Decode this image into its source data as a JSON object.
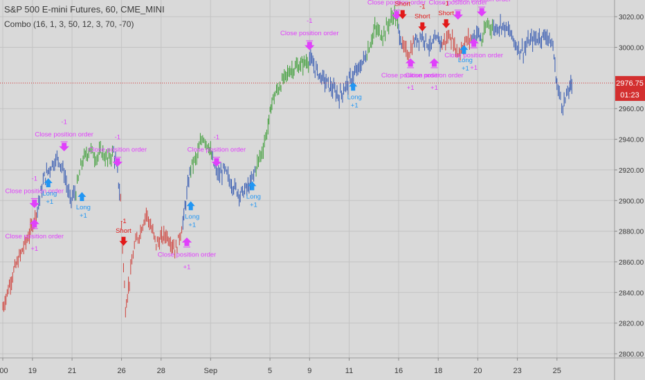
{
  "header": {
    "title": "S&P 500 E-mini Futures, 60, CME_MINI",
    "indicator": "Combo (16, 1, 3, 50, 12, 3, 70, -70)"
  },
  "colors": {
    "background": "#d9d9d9",
    "grid": "#c3c3c3",
    "up_trend": "#3a9c34",
    "down_trend": "#cf3e38",
    "neutral": "#2f55b0",
    "long_arrow": "#2196f3",
    "short_arrow": "#e21919",
    "close_arrow": "#e040fb",
    "price_label_bg": "#d32f2f"
  },
  "chart_data": {
    "type": "bar",
    "grid": true,
    "ylim": [
      2800,
      3030
    ],
    "y_ticks": [
      2800,
      2820,
      2840,
      2860,
      2880,
      2900,
      2920,
      2940,
      2960,
      3000,
      3020
    ],
    "y_tick_labels": [
      "2800.00",
      "2820.00",
      "2840.00",
      "2860.00",
      "2880.00",
      "2900.00",
      "2920.00",
      "2940.00",
      "2960.00",
      "3000.00",
      "3020.00"
    ],
    "x_ticks": [
      {
        "label": ":00",
        "x": 0
      },
      {
        "label": "19",
        "x": 3
      },
      {
        "label": "21",
        "x": 7
      },
      {
        "label": "26",
        "x": 12
      },
      {
        "label": "28",
        "x": 16
      },
      {
        "label": "Sep",
        "x": 21
      },
      {
        "label": "5",
        "x": 27
      },
      {
        "label": "9",
        "x": 31
      },
      {
        "label": "11",
        "x": 35
      },
      {
        "label": "16",
        "x": 40
      },
      {
        "label": "18",
        "x": 44
      },
      {
        "label": "20",
        "x": 48
      },
      {
        "label": "23",
        "x": 52
      },
      {
        "label": "25",
        "x": 56
      }
    ],
    "xlim": [
      0,
      60
    ],
    "last_price": "2976.75",
    "countdown": "01:23",
    "segments": [
      {
        "trend": "down",
        "points": [
          [
            0,
            2830
          ],
          [
            1,
            2852
          ],
          [
            2,
            2868
          ],
          [
            2.8,
            2880
          ],
          [
            3.5,
            2895
          ]
        ]
      },
      {
        "trend": "neutral",
        "points": [
          [
            3.5,
            2895
          ],
          [
            4.2,
            2915
          ],
          [
            5,
            2924
          ],
          [
            5.6,
            2928
          ],
          [
            6.2,
            2918
          ],
          [
            6.8,
            2900
          ],
          [
            7.4,
            2906
          ]
        ]
      },
      {
        "trend": "up",
        "points": [
          [
            7.4,
            2906
          ],
          [
            8,
            2925
          ],
          [
            8.8,
            2934
          ],
          [
            9.4,
            2928
          ],
          [
            10,
            2932
          ],
          [
            10.6,
            2926
          ],
          [
            11.2,
            2932
          ]
        ]
      },
      {
        "trend": "neutral",
        "points": [
          [
            11.2,
            2932
          ],
          [
            11.6,
            2918
          ],
          [
            11.9,
            2900
          ]
        ]
      },
      {
        "trend": "down",
        "points": [
          [
            11.9,
            2900
          ],
          [
            12.1,
            2870
          ],
          [
            12.4,
            2830
          ],
          [
            12.8,
            2848
          ],
          [
            13.3,
            2870
          ],
          [
            13.8,
            2878
          ],
          [
            14.5,
            2892
          ],
          [
            15.5,
            2872
          ],
          [
            16.5,
            2878
          ],
          [
            17.5,
            2868
          ],
          [
            18.2,
            2885
          ]
        ]
      },
      {
        "trend": "neutral",
        "points": [
          [
            18.2,
            2885
          ],
          [
            18.6,
            2904
          ],
          [
            19,
            2922
          ]
        ]
      },
      {
        "trend": "up",
        "points": [
          [
            19,
            2922
          ],
          [
            19.6,
            2928
          ],
          [
            20.2,
            2942
          ],
          [
            20.8,
            2936
          ],
          [
            21.2,
            2926
          ]
        ]
      },
      {
        "trend": "neutral",
        "points": [
          [
            21.2,
            2926
          ],
          [
            21.8,
            2916
          ],
          [
            22.4,
            2920
          ],
          [
            23,
            2912
          ],
          [
            24,
            2904
          ],
          [
            25,
            2910
          ],
          [
            25.6,
            2922
          ]
        ]
      },
      {
        "trend": "up",
        "points": [
          [
            25.6,
            2922
          ],
          [
            26.2,
            2932
          ],
          [
            26.8,
            2948
          ],
          [
            27.2,
            2965
          ],
          [
            28,
            2975
          ],
          [
            29,
            2985
          ],
          [
            30,
            2988
          ],
          [
            31,
            2992
          ]
        ]
      },
      {
        "trend": "neutral",
        "points": [
          [
            31,
            2992
          ],
          [
            32,
            2982
          ],
          [
            33,
            2975
          ],
          [
            34,
            2968
          ],
          [
            35,
            2978
          ],
          [
            36,
            2986
          ],
          [
            36.8,
            2996
          ]
        ]
      },
      {
        "trend": "up",
        "points": [
          [
            36.8,
            2996
          ],
          [
            37.6,
            3012
          ],
          [
            38.4,
            3008
          ],
          [
            39,
            3016
          ],
          [
            39.6,
            3022
          ],
          [
            40,
            3012
          ]
        ]
      },
      {
        "trend": "neutral",
        "points": [
          [
            40,
            3012
          ],
          [
            40.4,
            3000
          ]
        ]
      },
      {
        "trend": "down",
        "points": [
          [
            40.4,
            3000
          ],
          [
            41,
            2995
          ],
          [
            41.6,
            3004
          ]
        ]
      },
      {
        "trend": "neutral",
        "points": [
          [
            41.6,
            3004
          ],
          [
            42.4,
            3008
          ],
          [
            43.2,
            3000
          ],
          [
            44,
            3006
          ],
          [
            44.4,
            3002
          ]
        ]
      },
      {
        "trend": "down",
        "points": [
          [
            44.4,
            3002
          ],
          [
            45.2,
            3008
          ],
          [
            46,
            2996
          ],
          [
            46.8,
            3004
          ],
          [
            47.4,
            3006
          ]
        ]
      },
      {
        "trend": "neutral",
        "points": [
          [
            47.4,
            3006
          ],
          [
            48,
            3010
          ],
          [
            48.4,
            3004
          ]
        ]
      },
      {
        "trend": "up",
        "points": [
          [
            48.4,
            3004
          ],
          [
            49,
            3016
          ],
          [
            49.6,
            3012
          ]
        ]
      },
      {
        "trend": "neutral",
        "points": [
          [
            49.6,
            3012
          ],
          [
            50.4,
            3015
          ],
          [
            51.2,
            3010
          ],
          [
            52,
            3000
          ],
          [
            52.6,
            2998
          ],
          [
            53.2,
            3004
          ],
          [
            54,
            3006
          ],
          [
            55,
            3008
          ],
          [
            55.6,
            3000
          ],
          [
            56,
            2975
          ],
          [
            56.6,
            2962
          ],
          [
            57.2,
            2972
          ],
          [
            57.6,
            2976.75
          ]
        ]
      }
    ],
    "annotations": [
      {
        "kind": "close",
        "x": 3.2,
        "y": 2895,
        "dir": "down",
        "text": "Close position order",
        "qty": "-1"
      },
      {
        "kind": "close",
        "x": 3.2,
        "y": 2888,
        "dir": "up",
        "text": "Close position order",
        "qty": "+1"
      },
      {
        "kind": "long",
        "x": 4.6,
        "y": 2915,
        "text": "Long",
        "qty": "+1"
      },
      {
        "kind": "close",
        "x": 6.2,
        "y": 2932,
        "dir": "down",
        "text": "Close position order",
        "qty": "-1"
      },
      {
        "kind": "long",
        "x": 8,
        "y": 2906,
        "text": "Long",
        "qty": "+1"
      },
      {
        "kind": "close",
        "x": 11.6,
        "y": 2922,
        "dir": "down",
        "text": "Close position order",
        "qty": "-1"
      },
      {
        "kind": "short",
        "x": 12.2,
        "y": 2870,
        "text": "Short",
        "qty": "-1"
      },
      {
        "kind": "close",
        "x": 18.6,
        "y": 2876,
        "dir": "up",
        "text": "Close position order",
        "qty": "+1"
      },
      {
        "kind": "long",
        "x": 19,
        "y": 2900,
        "text": "Long",
        "qty": "+1"
      },
      {
        "kind": "close",
        "x": 21.6,
        "y": 2922,
        "dir": "down",
        "text": "Close position order",
        "qty": "-1"
      },
      {
        "kind": "long",
        "x": 25.2,
        "y": 2913,
        "text": "Long",
        "qty": "+1"
      },
      {
        "kind": "close",
        "x": 31,
        "y": 2998,
        "dir": "down",
        "text": "Close position order",
        "qty": "-1"
      },
      {
        "kind": "long",
        "x": 35.4,
        "y": 2978,
        "text": "Long",
        "qty": "+1"
      },
      {
        "kind": "close",
        "x": 39.8,
        "y": 3018,
        "dir": "down",
        "text": "Close position order",
        "qty": "-1"
      },
      {
        "kind": "short",
        "x": 40.4,
        "y": 3018,
        "text": "Short",
        "qty": "-1"
      },
      {
        "kind": "close",
        "x": 41.2,
        "y": 2993,
        "dir": "up",
        "text": "Close position order",
        "qty": "+1"
      },
      {
        "kind": "short",
        "x": 42.4,
        "y": 3010,
        "text": "Short",
        "qty": "-1"
      },
      {
        "kind": "close",
        "x": 43.6,
        "y": 2993,
        "dir": "up",
        "text": "Close position order",
        "qty": "+1"
      },
      {
        "kind": "short",
        "x": 44.8,
        "y": 3012,
        "text": "Short",
        "qty": "-1"
      },
      {
        "kind": "close",
        "x": 46,
        "y": 3018,
        "dir": "down",
        "text": "Close position order",
        "qty": "-1"
      },
      {
        "kind": "long",
        "x": 46.6,
        "y": 3002,
        "text": "Long",
        "qty": "+1"
      },
      {
        "kind": "close",
        "x": 47.6,
        "y": 3006,
        "dir": "up",
        "text": "Close position order",
        "qty": "+1"
      },
      {
        "kind": "close",
        "x": 48.4,
        "y": 3020,
        "dir": "down",
        "text": "Close position order",
        "qty": "-1"
      }
    ]
  }
}
